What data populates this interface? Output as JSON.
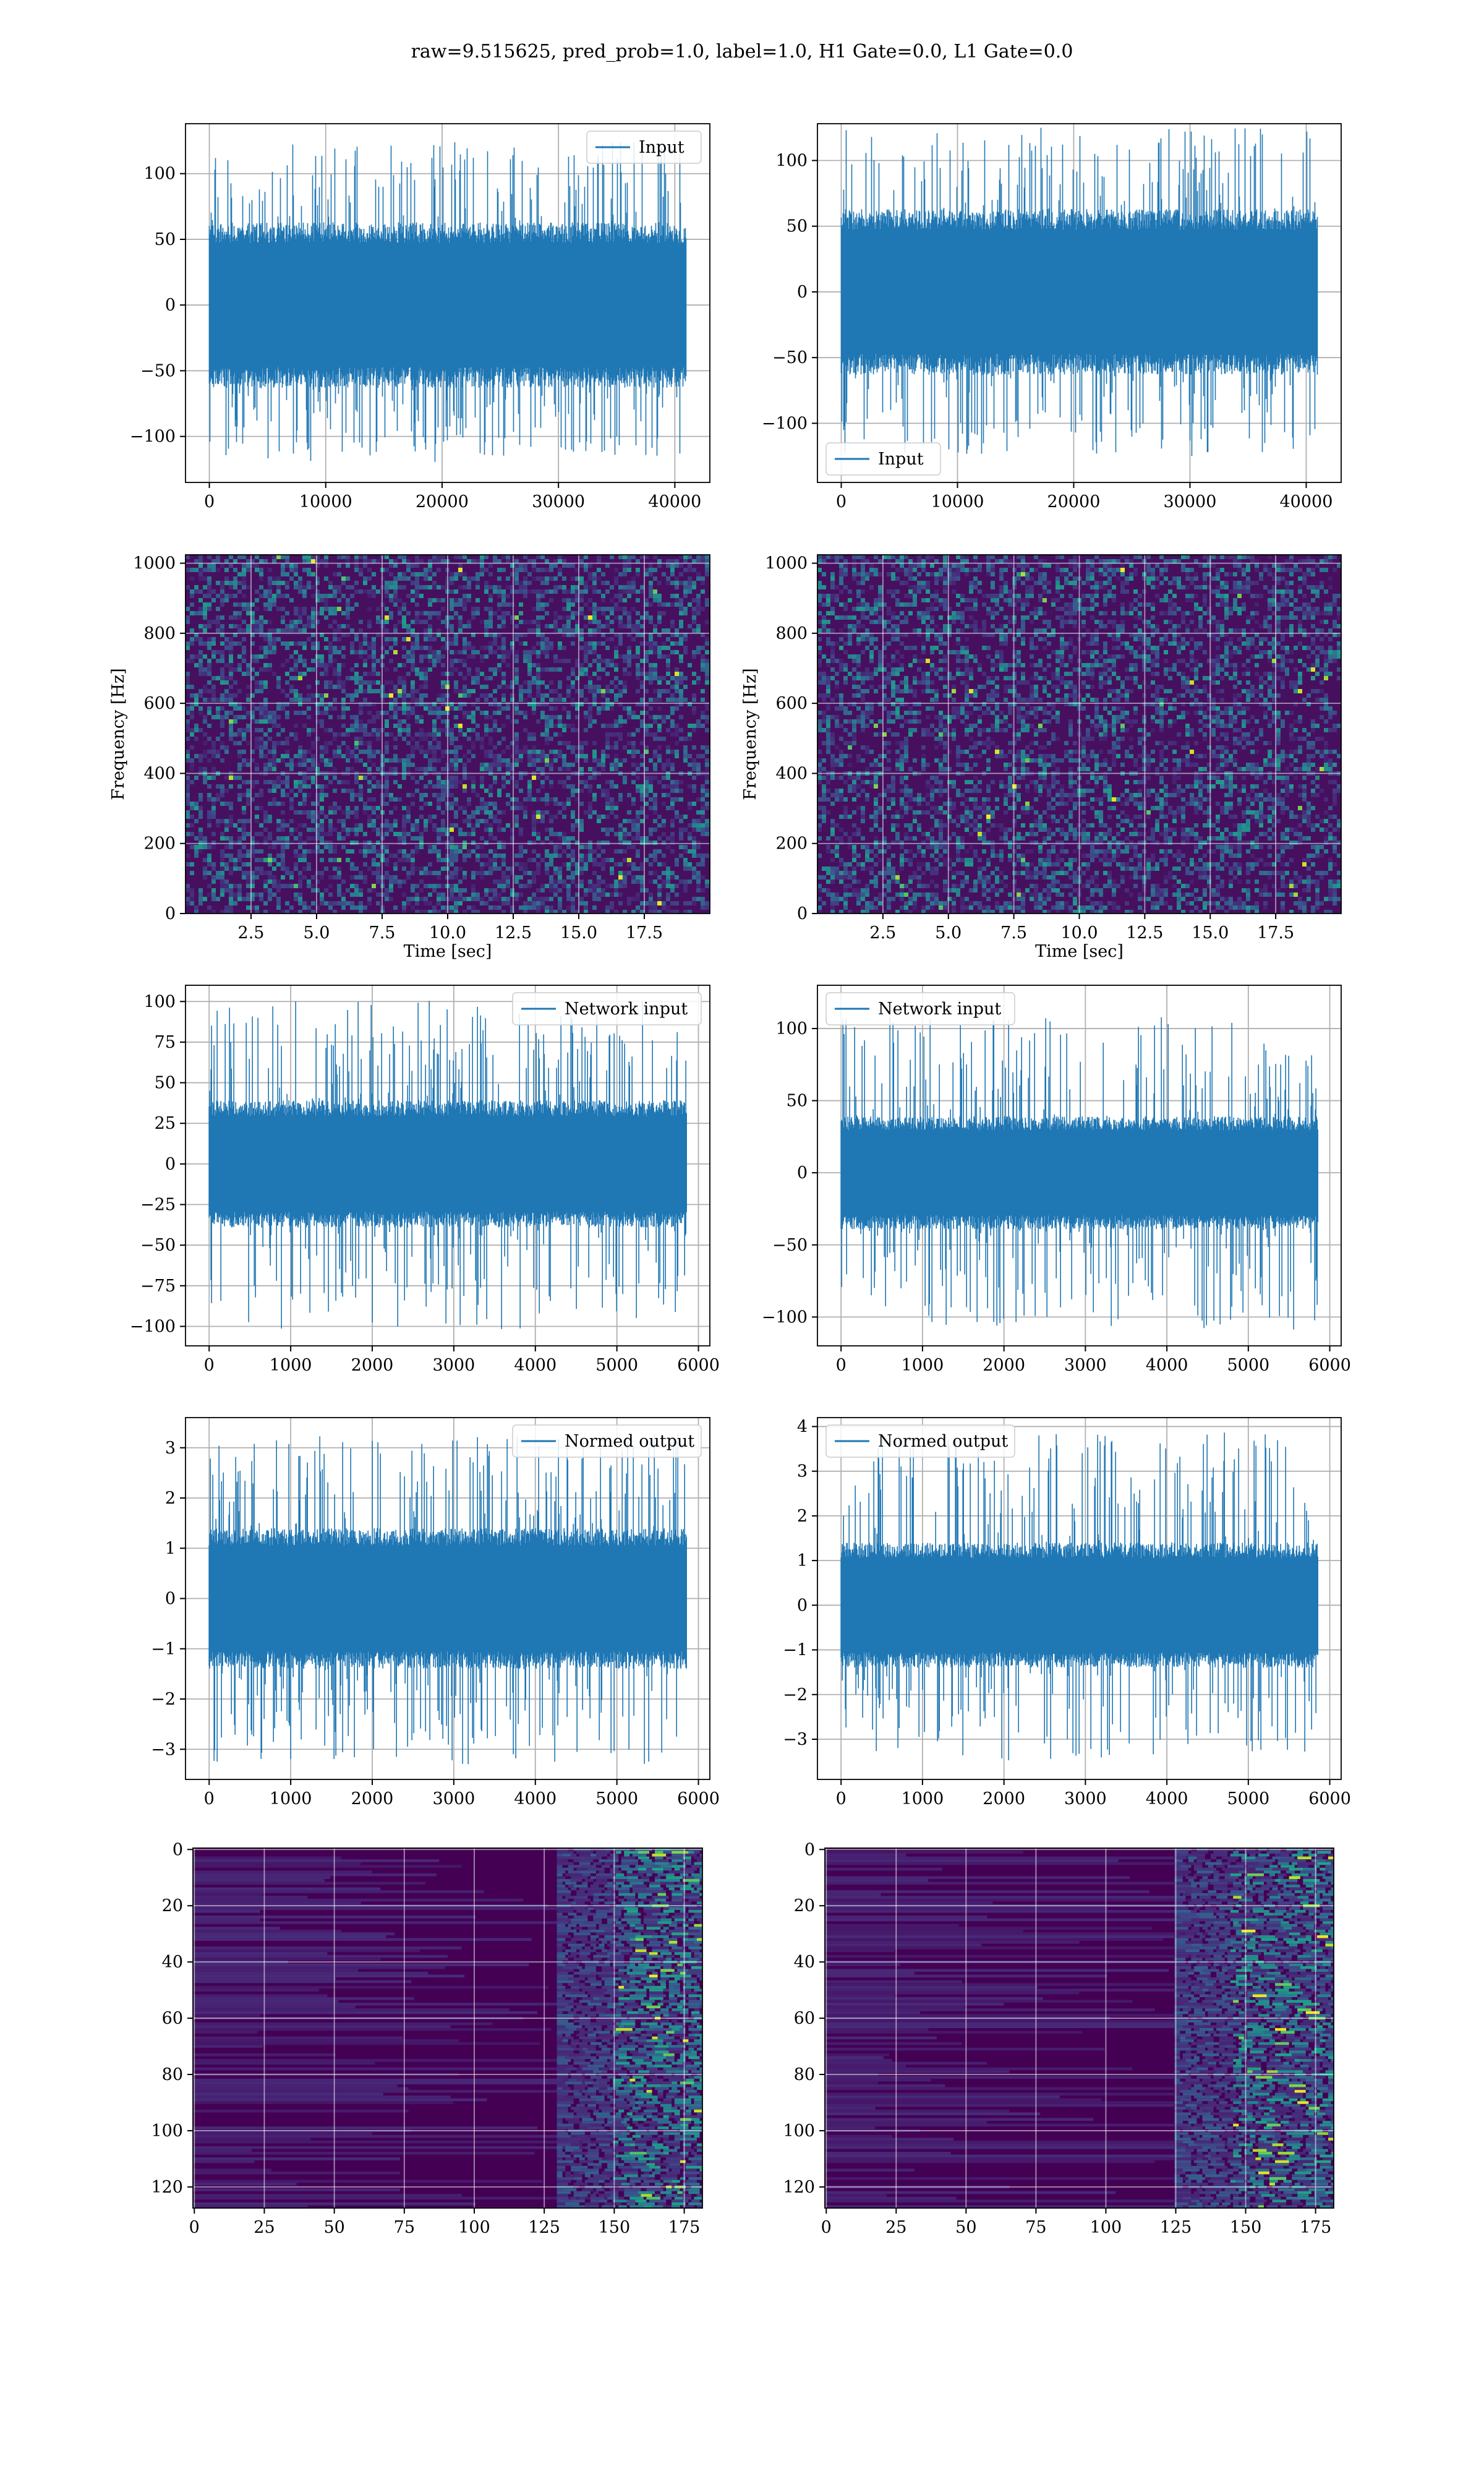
{
  "figure": {
    "suptitle": "raw=9.515625, pred_prob=1.0, label=1.0, H1 Gate=0.0, L1 Gate=0.0"
  },
  "colors": {
    "line": "#1f77b4",
    "grid": "#b0b0b0",
    "viridis_low": "#440154",
    "viridis_mid": "#21918c",
    "viridis_high": "#fde725"
  },
  "chart_data": [
    {
      "id": "r1c1",
      "type": "line",
      "series": [
        {
          "name": "Input",
          "n": 40960,
          "amplitude_typical": 45,
          "peak_max": 125,
          "peak_min": -120
        }
      ],
      "legend": "upper right",
      "xlim": [
        -2048,
        43008
      ],
      "ylim": [
        -135,
        138
      ],
      "xticks": [
        0,
        10000,
        20000,
        30000,
        40000
      ],
      "yticks": [
        -100,
        -50,
        0,
        50,
        100
      ],
      "grid": true
    },
    {
      "id": "r1c2",
      "type": "line",
      "series": [
        {
          "name": "Input",
          "n": 40960,
          "amplitude_typical": 45,
          "peak_max": 125,
          "peak_min": -125
        }
      ],
      "legend": "lower left",
      "xlim": [
        -2048,
        43008
      ],
      "ylim": [
        -145,
        128
      ],
      "xticks": [
        0,
        10000,
        20000,
        30000,
        40000
      ],
      "yticks": [
        -100,
        -50,
        0,
        50,
        100
      ],
      "grid": true
    },
    {
      "id": "r2c1",
      "type": "heatmap",
      "xlabel": "Time [sec]",
      "ylabel": "Frequency [Hz]",
      "xlim": [
        0,
        20
      ],
      "ylim": [
        0,
        1024
      ],
      "xticks": [
        2.5,
        5.0,
        7.5,
        10.0,
        12.5,
        15.0,
        17.5
      ],
      "xticklabels": [
        "2.5",
        "5.0",
        "7.5",
        "10.0",
        "12.5",
        "15.0",
        "17.5"
      ],
      "yticks": [
        0,
        200,
        400,
        600,
        800,
        1000
      ],
      "colormap": "viridis",
      "grid": true
    },
    {
      "id": "r2c2",
      "type": "heatmap",
      "xlabel": "Time [sec]",
      "ylabel": "Frequency [Hz]",
      "xlim": [
        0,
        20
      ],
      "ylim": [
        0,
        1024
      ],
      "xticks": [
        2.5,
        5.0,
        7.5,
        10.0,
        12.5,
        15.0,
        17.5
      ],
      "xticklabels": [
        "2.5",
        "5.0",
        "7.5",
        "10.0",
        "12.5",
        "15.0",
        "17.5"
      ],
      "yticks": [
        0,
        200,
        400,
        600,
        800,
        1000
      ],
      "colormap": "viridis",
      "grid": true
    },
    {
      "id": "r3c1",
      "type": "line",
      "series": [
        {
          "name": "Network input",
          "n": 5850,
          "amplitude_typical": 28,
          "peak_max": 102,
          "peak_min": -102
        }
      ],
      "legend": "upper right",
      "xlim": [
        -290,
        6140
      ],
      "ylim": [
        -112,
        110
      ],
      "xticks": [
        0,
        1000,
        2000,
        3000,
        4000,
        5000,
        6000
      ],
      "yticks": [
        -100,
        -75,
        -50,
        -25,
        0,
        25,
        50,
        75,
        100
      ],
      "grid": true
    },
    {
      "id": "r3c2",
      "type": "line",
      "series": [
        {
          "name": "Network input",
          "n": 5850,
          "amplitude_typical": 28,
          "peak_max": 108,
          "peak_min": -110
        }
      ],
      "legend": "upper left",
      "xlim": [
        -290,
        6140
      ],
      "ylim": [
        -120,
        130
      ],
      "xticks": [
        0,
        1000,
        2000,
        3000,
        4000,
        5000,
        6000
      ],
      "yticks": [
        -100,
        -50,
        0,
        50,
        100
      ],
      "grid": true
    },
    {
      "id": "r4c1",
      "type": "line",
      "series": [
        {
          "name": "Normed output",
          "n": 5850,
          "amplitude_typical": 1.0,
          "peak_max": 3.3,
          "peak_min": -3.3
        }
      ],
      "legend": "upper right",
      "xlim": [
        -290,
        6140
      ],
      "ylim": [
        -3.6,
        3.6
      ],
      "xticks": [
        0,
        1000,
        2000,
        3000,
        4000,
        5000,
        6000
      ],
      "yticks": [
        -3,
        -2,
        -1,
        0,
        1,
        2,
        3
      ],
      "grid": true
    },
    {
      "id": "r4c2",
      "type": "line",
      "series": [
        {
          "name": "Normed output",
          "n": 5850,
          "amplitude_typical": 1.0,
          "peak_max": 3.9,
          "peak_min": -3.5
        }
      ],
      "legend": "upper left",
      "xlim": [
        -290,
        6140
      ],
      "ylim": [
        -3.9,
        4.2
      ],
      "xticks": [
        0,
        1000,
        2000,
        3000,
        4000,
        5000,
        6000
      ],
      "yticks": [
        -3,
        -2,
        -1,
        0,
        1,
        2,
        3,
        4
      ],
      "grid": true
    },
    {
      "id": "r5c1",
      "type": "heatmap",
      "rows": 128,
      "cols": 182,
      "xlim": [
        -0.5,
        181.5
      ],
      "ylim": [
        127.5,
        -0.5
      ],
      "xticks": [
        0,
        25,
        50,
        75,
        100,
        125,
        150,
        175
      ],
      "yticks": [
        0,
        20,
        40,
        60,
        80,
        100,
        120
      ],
      "colormap": "viridis",
      "grid": true,
      "bright_region_cols": [
        150,
        180
      ]
    },
    {
      "id": "r5c2",
      "type": "heatmap",
      "rows": 128,
      "cols": 182,
      "xlim": [
        -0.5,
        181.5
      ],
      "ylim": [
        127.5,
        -0.5
      ],
      "xticks": [
        0,
        25,
        50,
        75,
        100,
        125,
        150,
        175
      ],
      "yticks": [
        0,
        20,
        40,
        60,
        80,
        100,
        120
      ],
      "colormap": "viridis",
      "grid": true,
      "bright_region_cols": [
        145,
        180
      ]
    }
  ]
}
